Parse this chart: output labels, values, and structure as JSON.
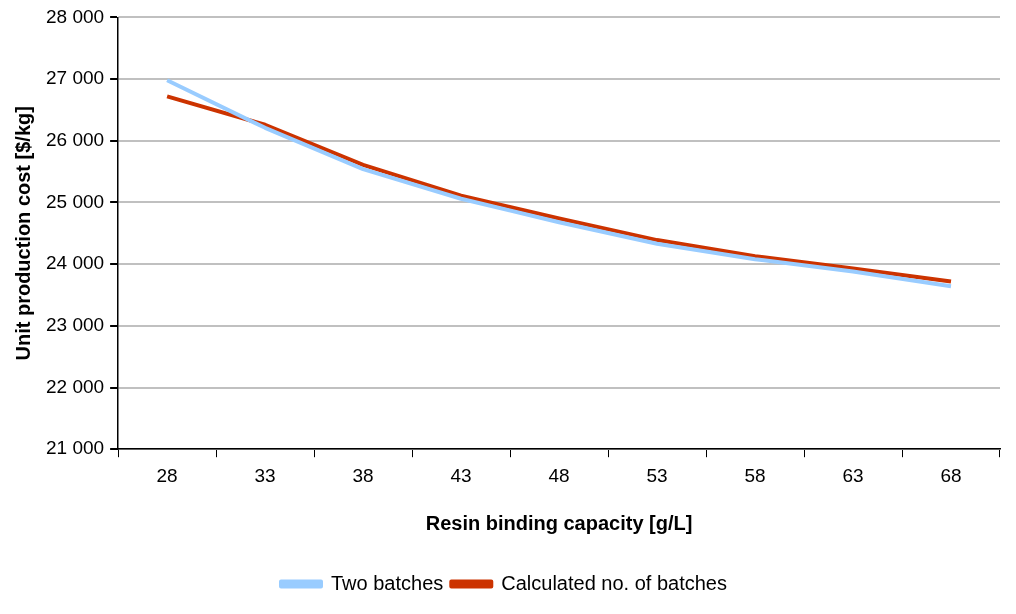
{
  "chart_data": {
    "type": "line",
    "categories": [
      "28",
      "33",
      "38",
      "43",
      "48",
      "53",
      "58",
      "63",
      "68"
    ],
    "series": [
      {
        "name": "Two batches",
        "color": "#99ccff",
        "values": [
          26980,
          26210,
          25540,
          25060,
          24680,
          24330,
          24080,
          23880,
          23640
        ]
      },
      {
        "name": "Calculated no. of batches",
        "color": "#cc3300",
        "values": [
          26720,
          26260,
          25610,
          25110,
          24740,
          24390,
          24130,
          23930,
          23720
        ]
      }
    ],
    "xlabel": "Resin binding capacity [g/L]",
    "ylabel": "Unit production cost [$/kg]",
    "ylim": [
      21000,
      28000
    ],
    "yticks": [
      {
        "value": 21000,
        "label": "21 000"
      },
      {
        "value": 22000,
        "label": "22 000"
      },
      {
        "value": 23000,
        "label": "23 000"
      },
      {
        "value": 24000,
        "label": "24 000"
      },
      {
        "value": 25000,
        "label": "25 000"
      },
      {
        "value": 26000,
        "label": "26 000"
      },
      {
        "value": 27000,
        "label": "27 000"
      },
      {
        "value": 28000,
        "label": "28 000"
      }
    ],
    "grid": "y",
    "legend": "bottom",
    "marker": "none",
    "line_style": "solid"
  }
}
